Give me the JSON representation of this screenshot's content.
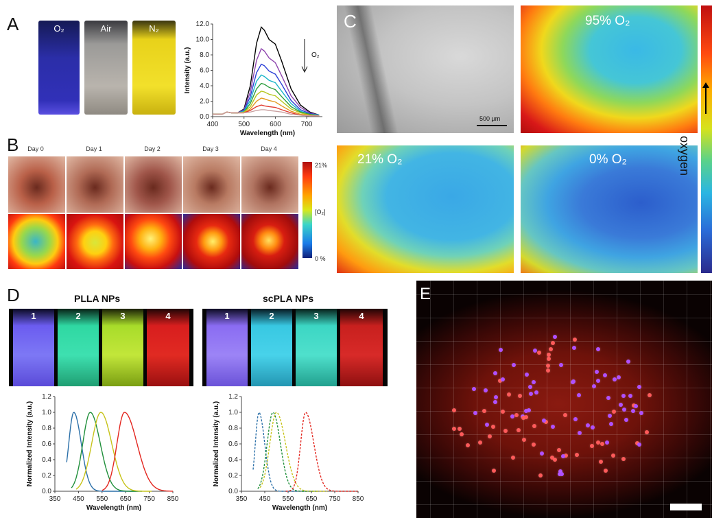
{
  "panels": {
    "A": {
      "letter": "A",
      "cuvettes": [
        {
          "label": "O₂"
        },
        {
          "label": "Air"
        },
        {
          "label": "N₂"
        }
      ]
    },
    "B": {
      "letter": "B",
      "days": [
        "Day 0",
        "Day 1",
        "Day 2",
        "Day 3",
        "Day 4"
      ],
      "colorbar": {
        "top": "21%",
        "mid": "[O₂]",
        "bottom": "0 %"
      }
    },
    "C": {
      "letter": "C",
      "scale_bar": "500 µm",
      "maps": [
        {
          "label": "95% O₂"
        },
        {
          "label": "21% O₂"
        },
        {
          "label": "0% O₂"
        }
      ],
      "colorbar_label": "oxygen"
    },
    "D": {
      "letter": "D",
      "groups": [
        {
          "title": "PLLA NPs",
          "vials": [
            "1",
            "2",
            "3",
            "4"
          ]
        },
        {
          "title": "scPLA NPs",
          "vials": [
            "1",
            "2",
            "3",
            "4"
          ]
        }
      ]
    },
    "E": {
      "letter": "E"
    }
  },
  "chart_data": [
    {
      "type": "line",
      "panel": "A",
      "xlabel": "Wavelength (nm)",
      "ylabel": "Intensity (a.u.)",
      "xlim": [
        400,
        750
      ],
      "ylim": [
        0,
        12
      ],
      "xticks": [
        "400",
        "500",
        "600",
        "700"
      ],
      "yticks": [
        "0.0",
        "2.0",
        "4.0",
        "6.0",
        "8.0",
        "10.0",
        "12.0"
      ],
      "annotation": "O₂",
      "x": [
        400,
        430,
        445,
        460,
        480,
        500,
        520,
        540,
        555,
        565,
        580,
        600,
        620,
        650,
        680,
        710,
        740
      ],
      "series": [
        {
          "color": "#000000",
          "values": [
            0.3,
            0.3,
            0.6,
            0.5,
            0.5,
            1.0,
            4.0,
            9.5,
            11.6,
            11.2,
            10.0,
            9.4,
            7.2,
            3.6,
            1.5,
            0.6,
            0.2
          ]
        },
        {
          "color": "#8e44ad",
          "values": [
            0.3,
            0.3,
            0.6,
            0.5,
            0.5,
            0.9,
            3.2,
            7.3,
            8.8,
            8.5,
            7.6,
            7.0,
            5.3,
            2.7,
            1.2,
            0.5,
            0.2
          ]
        },
        {
          "color": "#2b3fd6",
          "values": [
            0.3,
            0.3,
            0.6,
            0.5,
            0.5,
            0.8,
            2.6,
            5.7,
            6.8,
            6.6,
            5.9,
            5.5,
            4.2,
            2.1,
            0.9,
            0.4,
            0.2
          ]
        },
        {
          "color": "#19b5c9",
          "values": [
            0.3,
            0.3,
            0.6,
            0.5,
            0.5,
            0.7,
            2.1,
            4.6,
            5.4,
            5.2,
            4.7,
            4.4,
            3.3,
            1.7,
            0.7,
            0.3,
            0.2
          ]
        },
        {
          "color": "#2e9e3f",
          "values": [
            0.3,
            0.3,
            0.6,
            0.5,
            0.5,
            0.6,
            1.7,
            3.6,
            4.3,
            4.2,
            3.8,
            3.5,
            2.6,
            1.3,
            0.6,
            0.3,
            0.1
          ]
        },
        {
          "color": "#b5c61c",
          "values": [
            0.3,
            0.3,
            0.6,
            0.5,
            0.5,
            0.6,
            1.3,
            2.8,
            3.3,
            3.2,
            2.9,
            2.7,
            2.0,
            1.0,
            0.5,
            0.2,
            0.1
          ]
        },
        {
          "color": "#e39a1f",
          "values": [
            0.3,
            0.3,
            0.6,
            0.5,
            0.5,
            0.5,
            1.0,
            2.0,
            2.4,
            2.3,
            2.1,
            1.9,
            1.4,
            0.7,
            0.3,
            0.2,
            0.1
          ]
        },
        {
          "color": "#e03a2f",
          "values": [
            0.3,
            0.3,
            0.6,
            0.5,
            0.5,
            0.5,
            0.8,
            1.3,
            1.5,
            1.4,
            1.3,
            1.2,
            0.9,
            0.5,
            0.2,
            0.1,
            0.1
          ]
        },
        {
          "color": "#c9a0a0",
          "values": [
            0.3,
            0.3,
            0.6,
            0.5,
            0.5,
            0.5,
            0.6,
            0.8,
            0.9,
            0.9,
            0.8,
            0.7,
            0.6,
            0.3,
            0.2,
            0.1,
            0.1
          ]
        }
      ]
    },
    {
      "type": "line",
      "panel": "D-PLLA",
      "xlabel": "Wavelength (nm)",
      "ylabel": "Normalized Intensity (a.u.)",
      "xlim": [
        350,
        850
      ],
      "ylim": [
        0,
        1.2
      ],
      "xticks": [
        "350",
        "450",
        "550",
        "650",
        "750",
        "850"
      ],
      "yticks": [
        "0.0",
        "0.2",
        "0.4",
        "0.6",
        "0.8",
        "1.0",
        "1.2"
      ],
      "dashed": false,
      "series": [
        {
          "color": "#2a6fa8",
          "peak": 430,
          "width": 30,
          "tail": 45,
          "start": 400,
          "end": 700
        },
        {
          "color": "#1f8f3a",
          "peak": 500,
          "width": 45,
          "tail": 60,
          "start": 420,
          "end": 720
        },
        {
          "color": "#c7c31a",
          "peak": 545,
          "width": 55,
          "tail": 65,
          "start": 440,
          "end": 760
        },
        {
          "color": "#e3261f",
          "peak": 645,
          "width": 45,
          "tail": 75,
          "start": 550,
          "end": 850
        }
      ]
    },
    {
      "type": "line",
      "panel": "D-scPLA",
      "xlabel": "Wavelength (nm)",
      "ylabel": "Normalized Intensity (a.u.)",
      "xlim": [
        350,
        850
      ],
      "ylim": [
        0,
        1.2
      ],
      "xticks": [
        "350",
        "450",
        "550",
        "650",
        "750",
        "850"
      ],
      "yticks": [
        "0.0",
        "0.2",
        "0.4",
        "0.6",
        "0.8",
        "1.0",
        "1.2"
      ],
      "dashed": true,
      "series": [
        {
          "color": "#2a6fa8",
          "peak": 425,
          "width": 22,
          "tail": 35,
          "start": 400,
          "end": 650
        },
        {
          "color": "#1f8f3a",
          "peak": 485,
          "width": 35,
          "tail": 45,
          "start": 420,
          "end": 680
        },
        {
          "color": "#c7c31a",
          "peak": 500,
          "width": 40,
          "tail": 55,
          "start": 430,
          "end": 720
        },
        {
          "color": "#e3261f",
          "peak": 625,
          "width": 30,
          "tail": 50,
          "start": 540,
          "end": 850
        }
      ]
    }
  ]
}
